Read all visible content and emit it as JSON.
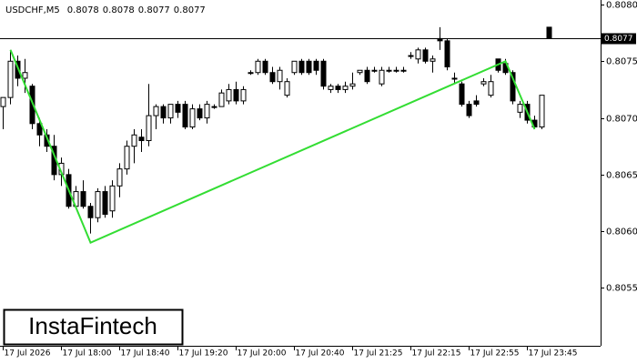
{
  "chart_data": {
    "type": "candlestick",
    "title": "USDCHF,M5",
    "header_ohlc": [
      0.8078,
      0.8078,
      0.8077,
      0.8077
    ],
    "logo": "InstaFintech",
    "categories": [
      "17 Jul 2026",
      null,
      null,
      null,
      null,
      null,
      null,
      null,
      "17 Jul 18:00",
      null,
      null,
      null,
      null,
      null,
      null,
      null,
      "17 Jul 18:40",
      null,
      null,
      null,
      null,
      null,
      null,
      null,
      "17 Jul 19:20",
      null,
      null,
      null,
      null,
      null,
      null,
      null,
      "17 Jul 20:00",
      null,
      null,
      null,
      null,
      null,
      null,
      null,
      "17 Jul 20:40",
      null,
      null,
      null,
      null,
      null,
      null,
      null,
      "17 Jul 21:25",
      null,
      null,
      null,
      null,
      null,
      null,
      null,
      "17 Jul 22:15",
      null,
      null,
      null,
      null,
      null,
      null,
      null,
      "17 Jul 22:55",
      null,
      null,
      null,
      null,
      null,
      null,
      null,
      "17 Jul 23:45",
      null,
      null,
      null
    ],
    "ohlc": [
      [
        0.8071,
        0.80718,
        0.8069,
        0.80718
      ],
      [
        0.80718,
        0.8076,
        0.80712,
        0.8075
      ],
      [
        0.8075,
        0.80755,
        0.80728,
        0.80735
      ],
      [
        0.80735,
        0.80752,
        0.80722,
        0.8074
      ],
      [
        0.80728,
        0.8073,
        0.8069,
        0.80695
      ],
      [
        0.80695,
        0.807,
        0.80675,
        0.80685
      ],
      [
        0.80685,
        0.8069,
        0.8067,
        0.80675
      ],
      [
        0.80675,
        0.80685,
        0.80645,
        0.8065
      ],
      [
        0.8065,
        0.80665,
        0.8064,
        0.8066
      ],
      [
        0.8065,
        0.80655,
        0.8062,
        0.80622
      ],
      [
        0.80622,
        0.8064,
        0.8062,
        0.80635
      ],
      [
        0.80635,
        0.80645,
        0.8062,
        0.80622
      ],
      [
        0.80622,
        0.80625,
        0.80598,
        0.80612
      ],
      [
        0.80612,
        0.80638,
        0.80608,
        0.80635
      ],
      [
        0.80635,
        0.8064,
        0.80612,
        0.80615
      ],
      [
        0.80618,
        0.80645,
        0.80612,
        0.8064
      ],
      [
        0.8064,
        0.8066,
        0.8063,
        0.80655
      ],
      [
        0.80655,
        0.8068,
        0.8065,
        0.80675
      ],
      [
        0.80675,
        0.8069,
        0.8066,
        0.80685
      ],
      [
        0.80683,
        0.8069,
        0.8067,
        0.8068
      ],
      [
        0.8068,
        0.8073,
        0.80675,
        0.80702
      ],
      [
        0.80702,
        0.80712,
        0.8069,
        0.8071
      ],
      [
        0.8071,
        0.80712,
        0.80695,
        0.807
      ],
      [
        0.807,
        0.80712,
        0.80695,
        0.80712
      ],
      [
        0.80712,
        0.80715,
        0.807,
        0.80705
      ],
      [
        0.80712,
        0.80715,
        0.8069,
        0.80692
      ],
      [
        0.80692,
        0.80712,
        0.8069,
        0.80708
      ],
      [
        0.80708,
        0.80712,
        0.80698,
        0.807
      ],
      [
        0.807,
        0.80715,
        0.80695,
        0.80712
      ],
      [
        0.8071,
        0.80712,
        0.80708,
        0.8071
      ],
      [
        0.8071,
        0.80725,
        0.8071,
        0.80722
      ],
      [
        0.80715,
        0.8073,
        0.80712,
        0.80725
      ],
      [
        0.80725,
        0.80732,
        0.80712,
        0.80715
      ],
      [
        0.80715,
        0.80728,
        0.80712,
        0.80725
      ],
      [
        0.8074,
        0.80742,
        0.80738,
        0.8074
      ],
      [
        0.8074,
        0.80752,
        0.80738,
        0.8075
      ],
      [
        0.8075,
        0.80752,
        0.80738,
        0.8074
      ],
      [
        0.8074,
        0.80745,
        0.8073,
        0.80732
      ],
      [
        0.80732,
        0.80745,
        0.80725,
        0.80742
      ],
      [
        0.8072,
        0.80735,
        0.80718,
        0.80732
      ],
      [
        0.8074,
        0.8075,
        0.80738,
        0.8075
      ],
      [
        0.8075,
        0.80752,
        0.80738,
        0.8074
      ],
      [
        0.8075,
        0.80752,
        0.80738,
        0.8074
      ],
      [
        0.8075,
        0.80752,
        0.80738,
        0.80742
      ],
      [
        0.8075,
        0.80752,
        0.80725,
        0.80728
      ],
      [
        0.80725,
        0.8073,
        0.80722,
        0.80728
      ],
      [
        0.80728,
        0.8073,
        0.80722,
        0.80725
      ],
      [
        0.80725,
        0.80732,
        0.80722,
        0.80728
      ],
      [
        0.80728,
        0.8074,
        0.80725,
        0.8073
      ],
      [
        0.8074,
        0.80742,
        0.80738,
        0.80742
      ],
      [
        0.80742,
        0.80745,
        0.8073,
        0.80732
      ],
      [
        0.80742,
        0.80745,
        0.8074,
        0.80742
      ],
      [
        0.8073,
        0.80745,
        0.80728,
        0.80742
      ],
      [
        0.80742,
        0.80745,
        0.8074,
        0.80742
      ],
      [
        0.80742,
        0.80745,
        0.8074,
        0.80742
      ],
      [
        0.80742,
        0.80745,
        0.8074,
        0.80742
      ],
      [
        0.80755,
        0.80758,
        0.80752,
        0.80755
      ],
      [
        0.80752,
        0.80762,
        0.80748,
        0.8076
      ],
      [
        0.8076,
        0.80762,
        0.80748,
        0.8075
      ],
      [
        0.8075,
        0.80755,
        0.8074,
        0.80752
      ],
      [
        0.8077,
        0.8078,
        0.8076,
        0.80768
      ],
      [
        0.80768,
        0.8077,
        0.80742,
        0.80745
      ],
      [
        0.80735,
        0.8074,
        0.8073,
        0.80735
      ],
      [
        0.8073,
        0.80732,
        0.8071,
        0.80712
      ],
      [
        0.80712,
        0.80715,
        0.807,
        0.80702
      ],
      [
        0.80715,
        0.8072,
        0.8071,
        0.80712
      ],
      [
        0.8073,
        0.80735,
        0.80728,
        0.80732
      ],
      [
        0.8072,
        0.80738,
        0.80718,
        0.80732
      ],
      [
        0.80752,
        0.80752,
        0.8074,
        0.80742
      ],
      [
        0.80748,
        0.80752,
        0.80738,
        0.8074
      ],
      [
        0.8074,
        0.80742,
        0.80712,
        0.80715
      ],
      [
        0.80705,
        0.80715,
        0.807,
        0.80712
      ],
      [
        0.80712,
        0.80715,
        0.80695,
        0.80698
      ],
      [
        0.80698,
        0.80702,
        0.8069,
        0.80692
      ],
      [
        0.80692,
        0.8072,
        0.8069,
        0.8072
      ],
      [
        0.8078,
        0.8078,
        0.8077,
        0.8077
      ]
    ],
    "up_color": "#ffffff",
    "down_color": "#000000",
    "pattern": {
      "color": "#33dd33",
      "x": [
        1,
        12,
        69,
        73
      ],
      "values": [
        0.8076,
        0.8059,
        0.8075,
        0.8069
      ]
    },
    "current_price": {
      "value": 0.8077,
      "label": "0.8077"
    },
    "ylim": [
      0.80499,
      0.80804
    ],
    "yticks": [
      {
        "value": 0.8055,
        "label": "0.8055"
      },
      {
        "value": 0.806,
        "label": "0.8060"
      },
      {
        "value": 0.8065,
        "label": "0.8065"
      },
      {
        "value": 0.807,
        "label": "0.8070"
      },
      {
        "value": 0.8075,
        "label": "0.8075"
      },
      {
        "value": 0.808,
        "label": "0.8080"
      }
    ]
  }
}
